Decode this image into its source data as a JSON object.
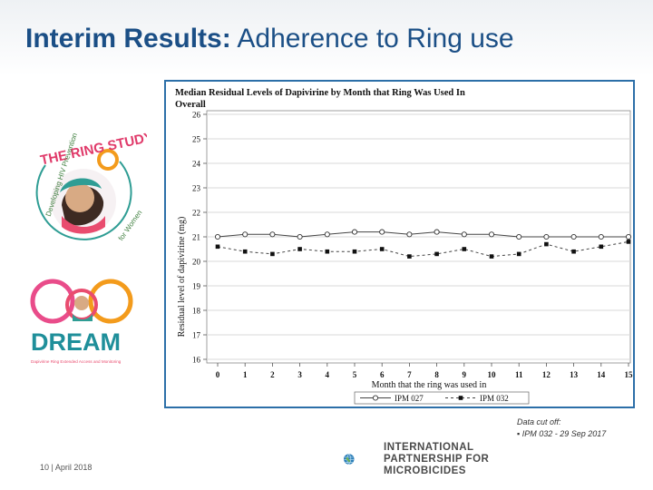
{
  "slide": {
    "title_bold": "Interim Results:",
    "title_rest": " Adherence to Ring use",
    "footer": "10 | April 2018",
    "cutoff_label": "Data cut off:",
    "cutoff_item": "▪ IPM 032 - 29 Sep 2017",
    "ipm_logo_lines": [
      "INTERNATIONAL",
      "PARTNERSHIP FOR",
      "MICROBICIDES"
    ],
    "ring_logo_title": "THE RING STUDY",
    "ring_logo_left": "Developing HIV Prevention",
    "ring_logo_right": "for Women",
    "dream_logo_title": "DREAM",
    "dream_logo_sub": "Dapivirine Ring Extended Access and Monitoring"
  },
  "colors": {
    "title": "#1b4f86",
    "frame": "#2c6fa8",
    "dream": "#1f8f9a"
  },
  "chart_data": {
    "type": "line",
    "title": "Median Residual Levels of Dapivirine by Month that Ring Was Used In",
    "subtitle": "Overall",
    "xlabel": "Month that the ring was used in",
    "ylabel": "Residual level of dapivirine (mg)",
    "x": [
      0,
      1,
      2,
      3,
      4,
      5,
      6,
      7,
      8,
      9,
      10,
      11,
      12,
      13,
      14,
      15
    ],
    "xticks": [
      "0",
      "1",
      "2",
      "3",
      "4",
      "5",
      "6",
      "7",
      "8",
      "9",
      "10",
      "11",
      "12",
      "13",
      "14",
      "15"
    ],
    "ylim": [
      16,
      26
    ],
    "yticks": [
      "16",
      "17",
      "18",
      "19",
      "20",
      "21",
      "22",
      "23",
      "24",
      "25",
      "26"
    ],
    "grid": true,
    "legend_position": "bottom",
    "series": [
      {
        "name": "IPM 027",
        "marker": "circle",
        "line": "solid",
        "values": [
          21.0,
          21.1,
          21.1,
          21.0,
          21.1,
          21.2,
          21.2,
          21.1,
          21.2,
          21.1,
          21.1,
          21.0,
          21.0,
          21.0,
          21.0,
          21.0
        ]
      },
      {
        "name": "IPM 032",
        "marker": "square",
        "line": "dashed",
        "values": [
          20.6,
          20.4,
          20.3,
          20.5,
          20.4,
          20.4,
          20.5,
          20.2,
          20.3,
          20.5,
          20.2,
          20.3,
          20.7,
          20.4,
          20.6,
          20.8
        ]
      }
    ]
  }
}
